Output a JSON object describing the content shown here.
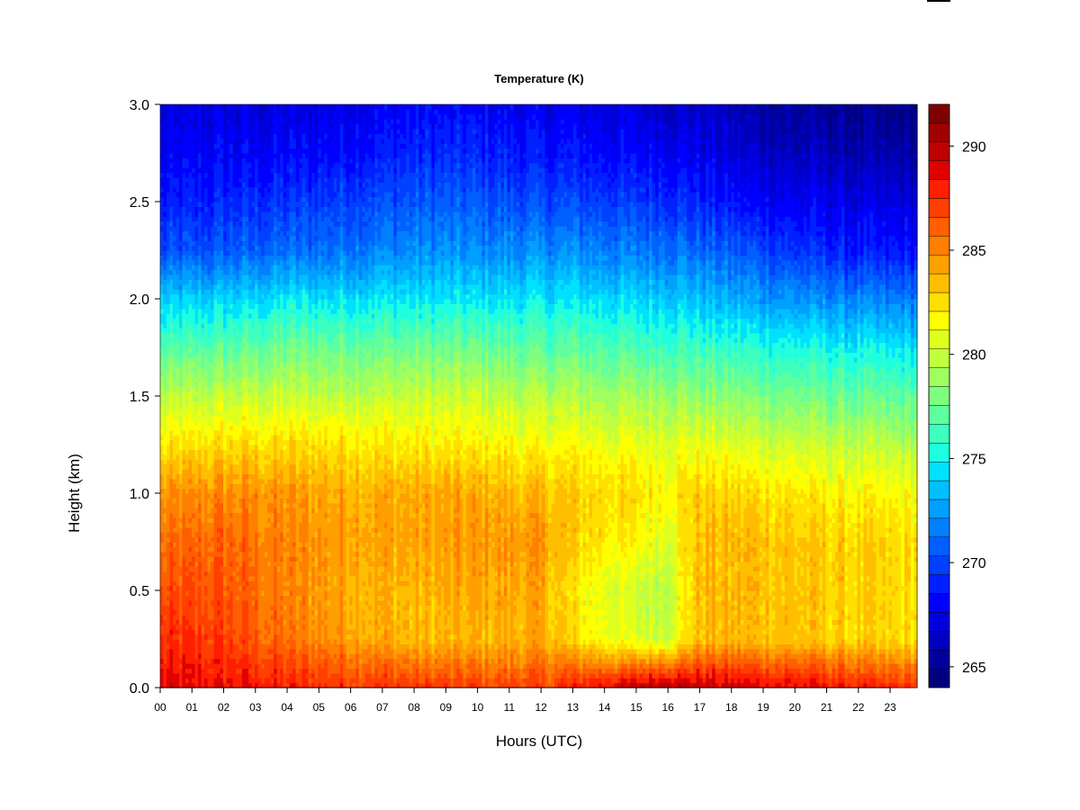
{
  "chart_data": {
    "type": "heatmap",
    "title": "Temperature (K)",
    "xlabel": "Hours (UTC)",
    "ylabel": "Height (km)",
    "x_ticks": [
      "00",
      "01",
      "02",
      "03",
      "04",
      "05",
      "06",
      "07",
      "08",
      "09",
      "10",
      "11",
      "12",
      "13",
      "14",
      "15",
      "16",
      "17",
      "18",
      "19",
      "20",
      "21",
      "22",
      "23"
    ],
    "xlim": [
      0,
      23.85
    ],
    "y_ticks": [
      "0.0",
      "0.5",
      "1.0",
      "1.5",
      "2.0",
      "2.5",
      "3.0"
    ],
    "ylim": [
      0,
      3.0
    ],
    "colorbar": {
      "min": 264,
      "max": 292,
      "levels": 28,
      "ticks": [
        "265",
        "270",
        "275",
        "280",
        "285",
        "290"
      ],
      "colors": [
        "#00007f",
        "#00009f",
        "#0000bf",
        "#0000df",
        "#0000ff",
        "#0020ff",
        "#0040ff",
        "#0060ff",
        "#0080ff",
        "#00a0ff",
        "#00c0ff",
        "#00e0ff",
        "#1fffdf",
        "#3fffbf",
        "#5fff9f",
        "#7fff7f",
        "#9fff5f",
        "#bfff3f",
        "#dfff1f",
        "#ffff00",
        "#ffdf00",
        "#ffbf00",
        "#ff9f00",
        "#ff7f00",
        "#ff5f00",
        "#ff3f00",
        "#ff1f00",
        "#df0000",
        "#bf0000",
        "#9f0000",
        "#7f0000"
      ]
    },
    "temperature_profile": [
      {
        "hour": 0,
        "levels": [
          288.5,
          287.5,
          286.5,
          285.5,
          284.5,
          282.0,
          279.5,
          276.5,
          273.5,
          270.0,
          268.5,
          267.5,
          267.0
        ]
      },
      {
        "hour": 2,
        "levels": [
          288.5,
          287.0,
          286.5,
          286.0,
          285.0,
          282.5,
          280.0,
          277.0,
          274.0,
          270.5,
          269.0,
          268.0,
          267.0
        ]
      },
      {
        "hour": 4,
        "levels": [
          288.0,
          285.5,
          285.0,
          285.0,
          284.5,
          282.5,
          280.0,
          277.5,
          274.5,
          271.0,
          269.5,
          268.0,
          267.0
        ]
      },
      {
        "hour": 6,
        "levels": [
          287.5,
          284.5,
          284.0,
          284.5,
          284.0,
          282.5,
          280.0,
          277.5,
          274.5,
          271.5,
          270.0,
          268.5,
          267.5
        ]
      },
      {
        "hour": 8,
        "levels": [
          287.5,
          283.5,
          283.5,
          284.0,
          284.0,
          282.0,
          280.0,
          277.5,
          274.5,
          272.0,
          270.5,
          269.0,
          268.0
        ]
      },
      {
        "hour": 10,
        "levels": [
          287.0,
          283.5,
          284.0,
          284.5,
          284.0,
          282.0,
          280.0,
          277.5,
          274.5,
          272.0,
          270.5,
          269.0,
          268.0
        ]
      },
      {
        "hour": 12,
        "levels": [
          287.0,
          284.0,
          284.0,
          284.5,
          283.5,
          281.5,
          279.5,
          277.0,
          274.5,
          272.0,
          270.0,
          268.5,
          267.5
        ]
      },
      {
        "hour": 13,
        "levels": [
          288.0,
          282.5,
          282.0,
          283.0,
          283.0,
          281.5,
          279.5,
          277.0,
          274.5,
          272.0,
          270.0,
          268.5,
          267.5
        ]
      },
      {
        "hour": 15,
        "levels": [
          289.5,
          280.5,
          280.0,
          281.5,
          282.5,
          281.0,
          279.0,
          276.5,
          274.0,
          271.5,
          269.5,
          268.0,
          267.0
        ]
      },
      {
        "hour": 16,
        "levels": [
          290.5,
          280.5,
          280.0,
          281.0,
          282.0,
          281.0,
          279.0,
          276.5,
          274.0,
          271.5,
          269.5,
          268.0,
          266.5
        ]
      },
      {
        "hour": 17,
        "levels": [
          289.5,
          283.5,
          283.5,
          283.5,
          283.0,
          281.0,
          278.5,
          276.0,
          273.5,
          271.0,
          269.0,
          267.5,
          266.5
        ]
      },
      {
        "hour": 19,
        "levels": [
          289.0,
          283.5,
          283.5,
          283.5,
          282.5,
          280.5,
          278.0,
          275.5,
          272.5,
          270.0,
          268.0,
          266.5,
          265.5
        ]
      },
      {
        "hour": 21,
        "levels": [
          288.5,
          283.0,
          283.0,
          283.0,
          282.0,
          280.0,
          277.5,
          275.0,
          272.0,
          269.0,
          267.5,
          266.0,
          265.0
        ]
      },
      {
        "hour": 23,
        "levels": [
          287.5,
          282.5,
          282.5,
          282.5,
          281.5,
          279.5,
          277.0,
          274.5,
          271.5,
          268.5,
          267.0,
          265.5,
          264.5
        ]
      }
    ],
    "profile_heights_km": [
      0.0,
      0.25,
      0.5,
      0.75,
      1.0,
      1.25,
      1.5,
      1.75,
      2.0,
      2.25,
      2.5,
      2.75,
      3.0
    ]
  }
}
